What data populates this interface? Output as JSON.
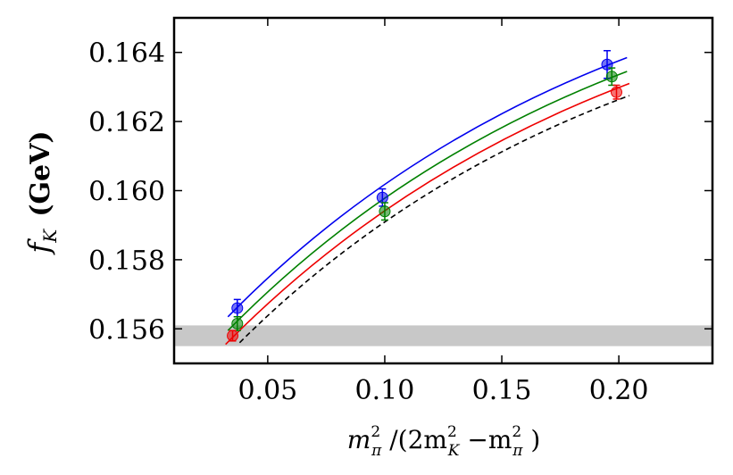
{
  "chart_data": {
    "type": "scatter",
    "title": "",
    "xlabel": {
      "m1": "m",
      "m1_sup": "2",
      "m1_sub": "π",
      "mid": " /(2m",
      "m2_sup": "2",
      "m2_sub": "K",
      "minus": " −m",
      "m3_sup": "2",
      "m3_sub": "π",
      "close": " )"
    },
    "ylabel": {
      "f": "f",
      "sub": "K",
      "unit": "(GeV)"
    },
    "xlim": [
      0.01,
      0.24
    ],
    "ylim": [
      0.155,
      0.165
    ],
    "x_ticks": [
      {
        "value": 0.05,
        "label": "0.05"
      },
      {
        "value": 0.1,
        "label": "0.10"
      },
      {
        "value": 0.15,
        "label": "0.15"
      },
      {
        "value": 0.2,
        "label": "0.20"
      }
    ],
    "y_ticks": [
      {
        "value": 0.156,
        "label": "0.156"
      },
      {
        "value": 0.158,
        "label": "0.158"
      },
      {
        "value": 0.16,
        "label": "0.160"
      },
      {
        "value": 0.162,
        "label": "0.162"
      },
      {
        "value": 0.164,
        "label": "0.164"
      }
    ],
    "band": {
      "y_low": 0.1555,
      "y_high": 0.1561,
      "color": "#c8c8c8"
    },
    "series": [
      {
        "color": "#0000ee",
        "points": [
          {
            "x": 0.037,
            "y": 0.1566,
            "err": 0.00025
          },
          {
            "x": 0.099,
            "y": 0.1598,
            "err": 0.00025
          },
          {
            "x": 0.195,
            "y": 0.16365,
            "err": 0.0004
          }
        ],
        "fit": {
          "x_start": 0.033,
          "x_end": 0.2035,
          "y_start": 0.15635,
          "y_end": 0.16385
        }
      },
      {
        "color": "#008000",
        "points": [
          {
            "x": 0.037,
            "y": 0.15615,
            "err": 0.0002
          },
          {
            "x": 0.1,
            "y": 0.1594,
            "err": 0.00025
          },
          {
            "x": 0.197,
            "y": 0.1633,
            "err": 0.00025
          }
        ],
        "fit": {
          "x_start": 0.033,
          "x_end": 0.2035,
          "y_start": 0.15595,
          "y_end": 0.16345
        }
      },
      {
        "color": "#ee0000",
        "points": [
          {
            "x": 0.035,
            "y": 0.1558,
            "err": 0.00015
          },
          {
            "x": 0.199,
            "y": 0.16285,
            "err": 0.0002
          }
        ],
        "fit": {
          "x_start": 0.032,
          "x_end": 0.2045,
          "y_start": 0.15555,
          "y_end": 0.1631
        }
      }
    ],
    "extrapolation": {
      "color": "#000000",
      "style": "dashed",
      "x_start": 0.038,
      "x_end": 0.2045,
      "y_start": 0.1556,
      "y_end": 0.16275
    },
    "grid": false,
    "legend": "none"
  }
}
